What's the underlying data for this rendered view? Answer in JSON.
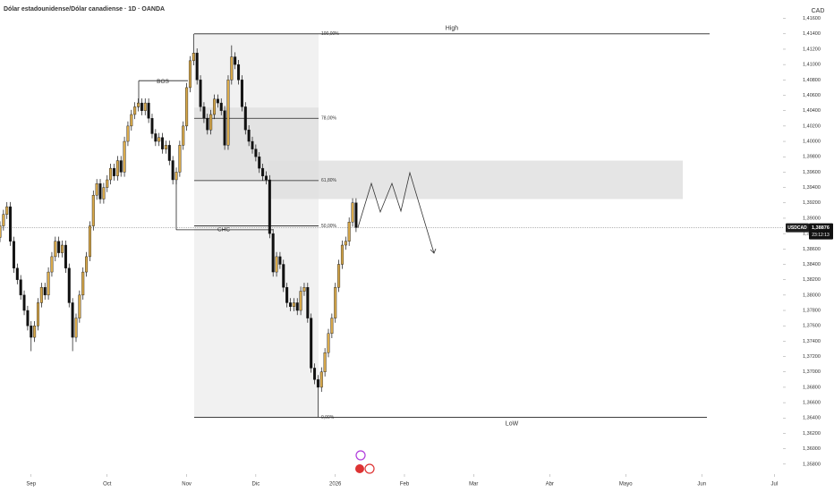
{
  "chart_data": {
    "type": "candlestick",
    "title": "Dólar estadounidense/Dólar canadiense · 1D · OANDA",
    "currency": "CAD",
    "up_color": "#d9a94a",
    "down_color": "#111111",
    "x": [
      -9,
      -8,
      -7,
      -6,
      -5,
      -4,
      -3,
      -2,
      -1,
      0,
      1,
      2,
      3,
      4,
      5,
      6,
      7,
      8,
      9,
      10,
      11,
      12,
      13,
      14,
      15,
      16,
      17,
      18,
      19,
      20,
      21,
      22,
      23,
      24,
      25,
      26,
      27,
      28,
      29,
      30,
      31,
      32,
      33,
      34,
      35,
      36,
      37,
      38,
      39,
      40,
      41,
      42,
      43,
      44,
      45,
      46,
      47,
      48,
      49,
      50,
      51,
      52,
      53,
      54,
      55,
      56,
      57,
      58,
      59,
      60,
      61,
      62,
      63,
      64,
      65,
      66,
      67,
      68,
      69,
      70,
      71,
      72,
      73,
      74,
      75,
      76,
      77,
      78,
      79,
      80,
      81,
      82,
      83,
      84,
      85,
      86,
      87,
      88,
      89,
      90,
      91,
      92,
      93,
      94
    ],
    "open": [
      1.3875,
      1.389,
      1.3905,
      1.3915,
      1.387,
      1.3835,
      1.382,
      1.38,
      1.378,
      1.376,
      1.3745,
      1.376,
      1.379,
      1.381,
      1.38,
      1.383,
      1.385,
      1.387,
      1.3855,
      1.3865,
      1.3835,
      1.379,
      1.3745,
      1.377,
      1.38,
      1.383,
      1.385,
      1.389,
      1.393,
      1.3945,
      1.3925,
      1.394,
      1.395,
      1.3965,
      1.3955,
      1.3975,
      1.396,
      1.4,
      1.402,
      1.4035,
      1.4045,
      1.405,
      1.404,
      1.405,
      1.403,
      1.401,
      1.4,
      1.4005,
      1.399,
      1.3995,
      1.3975,
      1.395,
      1.396,
      1.3995,
      1.402,
      1.407,
      1.4105,
      1.4115,
      1.408,
      1.4045,
      1.403,
      1.4015,
      1.4035,
      1.4055,
      1.405,
      1.404,
      1.3995,
      1.408,
      1.411,
      1.41,
      1.408,
      1.4045,
      1.4015,
      1.4,
      1.399,
      1.398,
      1.3965,
      1.3955,
      1.395,
      1.388,
      1.383,
      1.385,
      1.384,
      1.381,
      1.379,
      1.3785,
      1.379,
      1.378,
      1.3805,
      1.381,
      1.377,
      1.3705,
      1.369,
      1.368,
      1.37,
      1.3725,
      1.375,
      1.377,
      1.381,
      1.384,
      1.3865,
      1.387,
      1.3895,
      1.392
    ],
    "high": [
      1.3896,
      1.3911,
      1.3921,
      1.3921,
      1.3876,
      1.3841,
      1.3826,
      1.3806,
      1.3786,
      1.3766,
      1.3766,
      1.3796,
      1.3816,
      1.3816,
      1.3836,
      1.3856,
      1.3876,
      1.3876,
      1.3871,
      1.3871,
      1.3841,
      1.3796,
      1.3776,
      1.3806,
      1.3836,
      1.3856,
      1.3896,
      1.3936,
      1.3951,
      1.3951,
      1.3946,
      1.3956,
      1.3971,
      1.3971,
      1.3981,
      1.3981,
      1.4006,
      1.4026,
      1.4041,
      1.4051,
      1.4056,
      1.4056,
      1.4056,
      1.4056,
      1.4036,
      1.4016,
      1.4011,
      1.4011,
      1.4001,
      1.4001,
      1.3981,
      1.3966,
      1.4001,
      1.4026,
      1.4076,
      1.4111,
      1.414,
      1.4121,
      1.4086,
      1.4051,
      1.4036,
      1.4041,
      1.4061,
      1.4061,
      1.4056,
      1.4046,
      1.4086,
      1.4125,
      1.4116,
      1.4106,
      1.4086,
      1.4051,
      1.4021,
      1.4006,
      1.3996,
      1.3986,
      1.3971,
      1.3961,
      1.3956,
      1.3886,
      1.3856,
      1.3856,
      1.3846,
      1.3816,
      1.3796,
      1.3796,
      1.3796,
      1.3811,
      1.3816,
      1.3816,
      1.3776,
      1.3711,
      1.3696,
      1.3706,
      1.3731,
      1.3756,
      1.3776,
      1.3816,
      1.3846,
      1.3871,
      1.3876,
      1.3901,
      1.3926,
      1.3926
    ],
    "low": [
      1.3869,
      1.3884,
      1.3899,
      1.3864,
      1.3829,
      1.3814,
      1.3794,
      1.3774,
      1.3754,
      1.3727,
      1.3739,
      1.3754,
      1.3784,
      1.3794,
      1.3794,
      1.3824,
      1.3844,
      1.3849,
      1.3849,
      1.3829,
      1.3784,
      1.3727,
      1.3739,
      1.3764,
      1.3794,
      1.3824,
      1.3844,
      1.3884,
      1.3924,
      1.3919,
      1.3919,
      1.3934,
      1.3944,
      1.3949,
      1.3949,
      1.3954,
      1.3954,
      1.3994,
      1.4014,
      1.4029,
      1.4039,
      1.4034,
      1.4034,
      1.4024,
      1.4004,
      1.3994,
      1.3994,
      1.3984,
      1.3984,
      1.3969,
      1.3944,
      1.3944,
      1.3954,
      1.3989,
      1.4014,
      1.4064,
      1.4099,
      1.4074,
      1.4039,
      1.4024,
      1.4009,
      1.4009,
      1.4029,
      1.4044,
      1.4034,
      1.3989,
      1.3989,
      1.4074,
      1.4094,
      1.4074,
      1.4039,
      1.4009,
      1.3994,
      1.3984,
      1.3974,
      1.3959,
      1.3949,
      1.3944,
      1.3874,
      1.3824,
      1.3824,
      1.3834,
      1.3804,
      1.3784,
      1.3779,
      1.3779,
      1.3774,
      1.3774,
      1.3799,
      1.3764,
      1.3699,
      1.3684,
      1.3641,
      1.3674,
      1.3694,
      1.3719,
      1.3744,
      1.3764,
      1.3804,
      1.3834,
      1.3859,
      1.3864,
      1.3889,
      1.3882
    ],
    "close": [
      1.389,
      1.3905,
      1.3915,
      1.387,
      1.3835,
      1.382,
      1.38,
      1.378,
      1.376,
      1.3745,
      1.376,
      1.379,
      1.381,
      1.38,
      1.383,
      1.385,
      1.387,
      1.3855,
      1.3865,
      1.3835,
      1.379,
      1.3745,
      1.377,
      1.38,
      1.383,
      1.385,
      1.389,
      1.393,
      1.3945,
      1.3925,
      1.394,
      1.395,
      1.3965,
      1.3955,
      1.3975,
      1.396,
      1.4,
      1.402,
      1.4035,
      1.4045,
      1.405,
      1.404,
      1.405,
      1.403,
      1.401,
      1.4,
      1.4005,
      1.399,
      1.3995,
      1.3975,
      1.395,
      1.396,
      1.3995,
      1.402,
      1.407,
      1.4105,
      1.4115,
      1.408,
      1.4045,
      1.403,
      1.4015,
      1.4035,
      1.4055,
      1.405,
      1.404,
      1.3995,
      1.408,
      1.411,
      1.41,
      1.408,
      1.4045,
      1.4015,
      1.4,
      1.399,
      1.398,
      1.3965,
      1.3955,
      1.395,
      1.388,
      1.383,
      1.385,
      1.384,
      1.381,
      1.379,
      1.3785,
      1.379,
      1.378,
      1.3805,
      1.381,
      1.377,
      1.3705,
      1.369,
      1.368,
      1.37,
      1.3725,
      1.375,
      1.377,
      1.381,
      1.384,
      1.3865,
      1.387,
      1.3895,
      1.392,
      1.3888
    ],
    "xlim": [
      -9,
      217.5
    ],
    "xticks": [
      {
        "value": 0,
        "label": "Sep"
      },
      {
        "value": 22,
        "label": "Oct"
      },
      {
        "value": 45,
        "label": "Nov"
      },
      {
        "value": 65,
        "label": "Dic"
      },
      {
        "value": 88,
        "label": "2026"
      },
      {
        "value": 108,
        "label": "Feb"
      },
      {
        "value": 128,
        "label": "Mar"
      },
      {
        "value": 150,
        "label": "Abr"
      },
      {
        "value": 172,
        "label": "Mayo"
      },
      {
        "value": 194,
        "label": "Jun"
      },
      {
        "value": 215,
        "label": "Jul"
      }
    ],
    "ylim": [
      1.3567,
      1.4184
    ],
    "yticks": [
      {
        "value": 1.416,
        "label": "1,41600"
      },
      {
        "value": 1.414,
        "label": "1,41400"
      },
      {
        "value": 1.412,
        "label": "1,41200"
      },
      {
        "value": 1.41,
        "label": "1,41000"
      },
      {
        "value": 1.408,
        "label": "1,40800"
      },
      {
        "value": 1.406,
        "label": "1,40600"
      },
      {
        "value": 1.404,
        "label": "1,40400"
      },
      {
        "value": 1.402,
        "label": "1,40200"
      },
      {
        "value": 1.4,
        "label": "1,40000"
      },
      {
        "value": 1.398,
        "label": "1,39800"
      },
      {
        "value": 1.396,
        "label": "1,39600"
      },
      {
        "value": 1.394,
        "label": "1,39400"
      },
      {
        "value": 1.392,
        "label": "1,39200"
      },
      {
        "value": 1.39,
        "label": "1,39000"
      },
      {
        "value": 1.388,
        "label": "1,38800"
      },
      {
        "value": 1.386,
        "label": "1,38600"
      },
      {
        "value": 1.384,
        "label": "1,38400"
      },
      {
        "value": 1.382,
        "label": "1,38200"
      },
      {
        "value": 1.38,
        "label": "1,38000"
      },
      {
        "value": 1.378,
        "label": "1,37800"
      },
      {
        "value": 1.376,
        "label": "1,37600"
      },
      {
        "value": 1.374,
        "label": "1,37400"
      },
      {
        "value": 1.372,
        "label": "1,37200"
      },
      {
        "value": 1.37,
        "label": "1,37000"
      },
      {
        "value": 1.368,
        "label": "1,36800"
      },
      {
        "value": 1.366,
        "label": "1,36600"
      },
      {
        "value": 1.364,
        "label": "1,36400"
      },
      {
        "value": 1.362,
        "label": "1,36200"
      },
      {
        "value": 1.36,
        "label": "1,36000"
      },
      {
        "value": 1.358,
        "label": "1,35800"
      }
    ],
    "fib_levels": [
      {
        "text": "100,00%",
        "price": 1.414
      },
      {
        "text": "78,00%",
        "price": 1.403
      },
      {
        "text": "61,80%",
        "price": 1.3949
      },
      {
        "text": "50,00%",
        "price": 1.389
      },
      {
        "text": "0,00%",
        "price": 1.3641
      }
    ],
    "high_label": "High",
    "low_label": "LoW",
    "bos": {
      "text": "BOS",
      "price": 1.4079
    },
    "chc": {
      "text": "CHC",
      "price": 1.3885
    },
    "zone": {
      "top": 1.3975,
      "bottom": 1.3925
    },
    "last_price": {
      "symbol": "USDCAD",
      "value": 1.38876,
      "label": "1,38876",
      "countdown": "23:12:13"
    }
  }
}
